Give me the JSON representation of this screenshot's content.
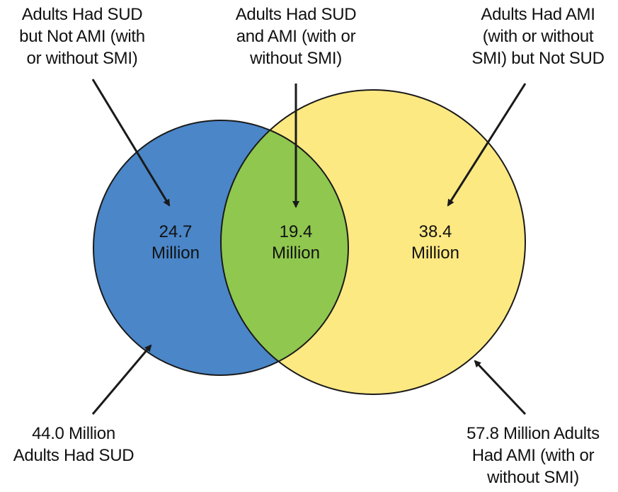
{
  "colors": {
    "sud_circle": "#4a86c8",
    "ami_circle": "#fde982",
    "overlap": "#8fc74f",
    "outline": "#1a1a1a",
    "text": "#111111"
  },
  "labels": {
    "sud_only": [
      "Adults Had SUD",
      "but Not AMI (with",
      "or without SMI)"
    ],
    "both": [
      "Adults Had SUD",
      "and AMI (with or",
      "without SMI)"
    ],
    "ami_only": [
      "Adults Had AMI",
      "(with or without",
      "SMI) but Not SUD"
    ],
    "sud_total": [
      "44.0 Million",
      "Adults Had SUD"
    ],
    "ami_total": [
      "57.8 Million Adults",
      "Had AMI (with or",
      "without SMI)"
    ]
  },
  "values": {
    "sud_only": [
      "24.7",
      "Million"
    ],
    "both": [
      "19.4",
      "Million"
    ],
    "ami_only": [
      "38.4",
      "Million"
    ]
  }
}
